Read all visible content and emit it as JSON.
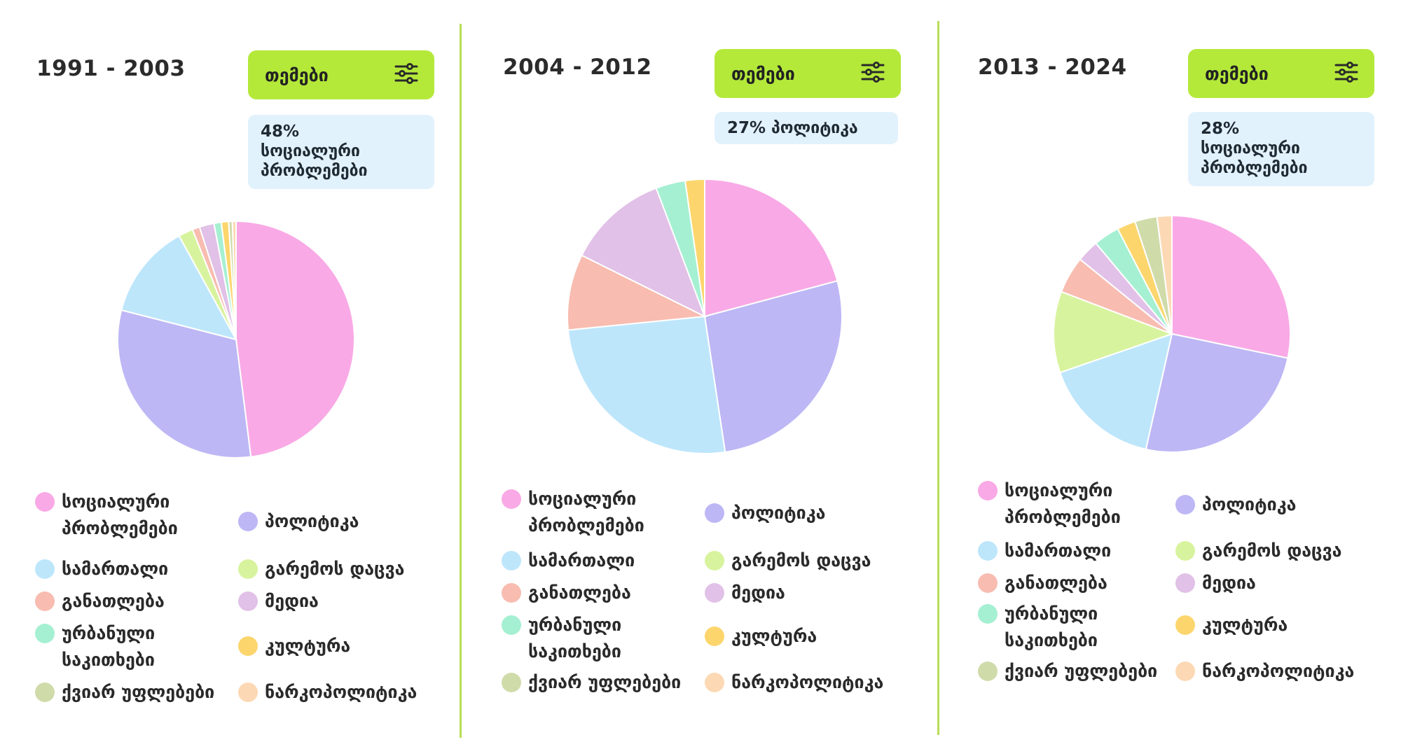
{
  "colors": {
    "accent": "#b4e93a",
    "divider": "#b9dd57",
    "badge_bg": "#e2f2fd",
    "categories": [
      "#f9a9e6",
      "#bdb7f5",
      "#bde6fb",
      "#d8f39e",
      "#f8bcb0",
      "#e1c1e7",
      "#a5f0d2",
      "#fcd66d",
      "#d0dbaa",
      "#fcd9b4"
    ]
  },
  "legend_labels": [
    "სოციალური პრობლემები",
    "პოლიტიკა",
    "სამართალი",
    "გარემოს დაცვა",
    "განათლება",
    "მედია",
    "ურბანული საკითხები",
    "კულტურა",
    "ქვიარ უფლებები",
    "ნარკოპოლიტიკა"
  ],
  "panels": [
    {
      "period": "1991 - 2003",
      "button_label": "თემები",
      "highlight": "48%\nსოციალური\nპრობლემები"
    },
    {
      "period": "2004 - 2012",
      "button_label": "თემები",
      "highlight": "27% პოლიტიკა"
    },
    {
      "period": "2013 - 2024",
      "button_label": "თემები",
      "highlight": "28%\nსოციალური\nპრობლემები"
    }
  ],
  "chart_data": [
    {
      "type": "pie",
      "title": "1991 - 2003",
      "categories": [
        "სოციალური პრობლემები",
        "პოლიტიკა",
        "სამართალი",
        "გარემოს დაცვა",
        "განათლება",
        "მედია",
        "ურბანული საკითხები",
        "კულტურა",
        "ქვიარ უფლებები",
        "ნარკოპოლიტიკა"
      ],
      "values": [
        48,
        31,
        13,
        2,
        1,
        2,
        1,
        1,
        0.5,
        0.5
      ],
      "legend": "bottom"
    },
    {
      "type": "pie",
      "title": "2004 - 2012",
      "categories": [
        "სოციალური პრობლემები",
        "პოლიტიკა",
        "სამართალი",
        "გარემოს დაცვა",
        "განათლება",
        "მედია",
        "ურბანული საკითხები",
        "კულტურა",
        "ქვიარ უფლებები",
        "ნარკოპოლიტიკა"
      ],
      "values": [
        21,
        27,
        26,
        0,
        9,
        12,
        3.5,
        2.3,
        0,
        0
      ],
      "legend": "bottom"
    },
    {
      "type": "pie",
      "title": "2013 - 2024",
      "categories": [
        "სოციალური პრობლემები",
        "პოლიტიკა",
        "სამართალი",
        "გარემოს დაცვა",
        "განათლება",
        "მედია",
        "ურბანული საკითხები",
        "კულტურა",
        "ქვიარ უფლებები",
        "ნარკოპოლიტიკა"
      ],
      "values": [
        28,
        25,
        16,
        11,
        5,
        3,
        3.5,
        2.5,
        3,
        2
      ],
      "legend": "bottom"
    }
  ]
}
